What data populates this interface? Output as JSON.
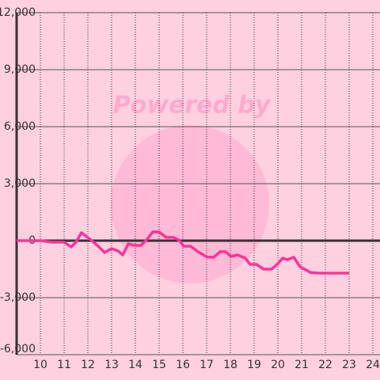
{
  "chart_data": {
    "type": "line",
    "watermark": "Powered by",
    "series": [
      {
        "color": "#ff3399",
        "x": [
          9,
          10,
          10.5,
          11,
          11.3,
          11.5,
          11.73,
          12,
          12.4,
          12.7,
          13,
          13.27,
          13.47,
          13.7,
          13.97,
          14.23,
          14.5,
          14.73,
          15,
          15.3,
          15.6,
          15.83,
          16.03,
          16.33,
          16.63,
          17.03,
          17.3,
          17.57,
          17.8,
          18.03,
          18.3,
          18.63,
          18.83,
          19.1,
          19.4,
          19.73,
          19.97,
          20.2,
          20.4,
          20.67,
          20.93,
          21.37,
          21.73,
          23
        ],
        "values": [
          0,
          0,
          -80,
          -80,
          -330,
          -80,
          420,
          170,
          -250,
          -620,
          -420,
          -540,
          -750,
          -170,
          -250,
          -250,
          80,
          460,
          460,
          170,
          170,
          40,
          -290,
          -290,
          -580,
          -870,
          -870,
          -580,
          -580,
          -830,
          -750,
          -920,
          -1250,
          -1250,
          -1500,
          -1500,
          -1250,
          -920,
          -1000,
          -870,
          -1370,
          -1670,
          -1710,
          -1710
        ]
      }
    ],
    "xlim": [
      9,
      24.3
    ],
    "xticks": [
      10,
      11,
      12,
      13,
      14,
      15,
      16,
      17,
      18,
      19,
      20,
      21,
      22,
      23,
      24
    ],
    "ylim": [
      -6000,
      12000
    ],
    "yticks": [
      {
        "value": -6000,
        "label": "-6,000"
      },
      {
        "value": -3000,
        "label": "-3,000"
      },
      0,
      {
        "value": 3000,
        "label": "3,000"
      },
      {
        "value": 6000,
        "label": "6,000"
      },
      {
        "value": 9000,
        "label": "9,000"
      },
      {
        "value": 12000,
        "label": "12,000"
      }
    ],
    "grid": true,
    "background": "#ffd0e0"
  }
}
